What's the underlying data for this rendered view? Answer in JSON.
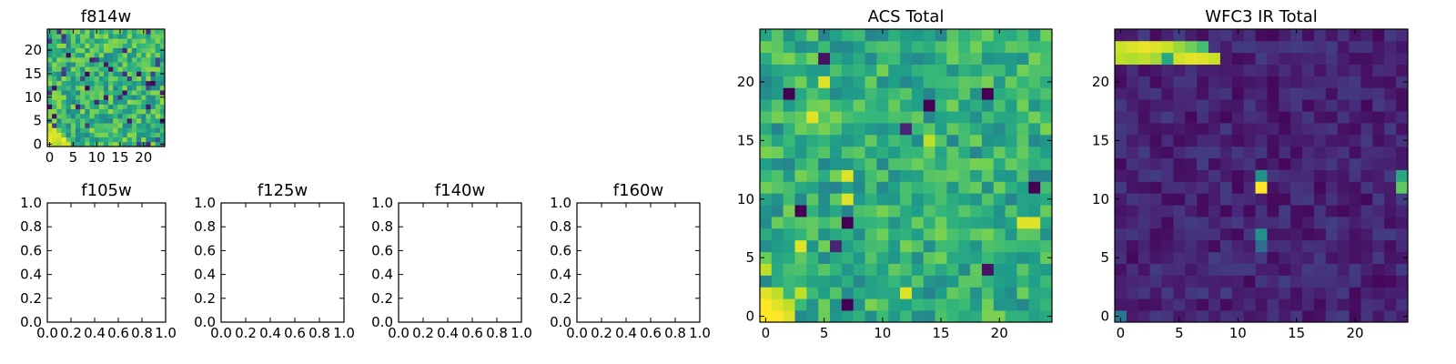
{
  "figure": {
    "background": "#ffffff"
  },
  "chart_data": [
    {
      "id": "f814w",
      "type": "heatmap",
      "title": "f814w",
      "colormap": "viridis",
      "grid_size": 25,
      "xlim": [
        -0.5,
        24.5
      ],
      "ylim": [
        -0.5,
        24.5
      ],
      "xticks": [
        0,
        5,
        10,
        15,
        20
      ],
      "xtick_labels": [
        "0",
        "5",
        "10",
        "15",
        "20"
      ],
      "yticks": [
        0,
        5,
        10,
        15,
        20
      ],
      "ytick_labels": [
        "0",
        "5",
        "10",
        "15",
        "20"
      ],
      "grid": false,
      "note_values": "noise-like field of normalized intensities, brighter corner at bottom-left"
    },
    {
      "id": "f105w",
      "type": "empty",
      "title": "f105w",
      "xlim": [
        0,
        1
      ],
      "ylim": [
        0,
        1
      ],
      "xtick_labels": [
        "0.0",
        "0.2",
        "0.4",
        "0.6",
        "0.8",
        "1.0"
      ],
      "ytick_labels": [
        "0.0",
        "0.2",
        "0.4",
        "0.6",
        "0.8",
        "1.0"
      ]
    },
    {
      "id": "f125w",
      "type": "empty",
      "title": "f125w",
      "xlim": [
        0,
        1
      ],
      "ylim": [
        0,
        1
      ],
      "xtick_labels": [
        "0.0",
        "0.2",
        "0.4",
        "0.6",
        "0.8",
        "1.0"
      ],
      "ytick_labels": [
        "0.0",
        "0.2",
        "0.4",
        "0.6",
        "0.8",
        "1.0"
      ]
    },
    {
      "id": "f140w",
      "type": "empty",
      "title": "f140w",
      "xlim": [
        0,
        1
      ],
      "ylim": [
        0,
        1
      ],
      "xtick_labels": [
        "0.0",
        "0.2",
        "0.4",
        "0.6",
        "0.8",
        "1.0"
      ],
      "ytick_labels": [
        "0.0",
        "0.2",
        "0.4",
        "0.6",
        "0.8",
        "1.0"
      ]
    },
    {
      "id": "f160w",
      "type": "empty",
      "title": "f160w",
      "xlim": [
        0,
        1
      ],
      "ylim": [
        0,
        1
      ],
      "xtick_labels": [
        "0.0",
        "0.2",
        "0.4",
        "0.6",
        "0.8",
        "1.0"
      ],
      "ytick_labels": [
        "0.0",
        "0.2",
        "0.4",
        "0.6",
        "0.8",
        "1.0"
      ]
    },
    {
      "id": "acs_total",
      "type": "heatmap",
      "title": "ACS Total",
      "colormap": "viridis",
      "grid_size": 25,
      "xlim": [
        -0.5,
        24.5
      ],
      "ylim": [
        -0.5,
        24.5
      ],
      "xticks": [
        0,
        5,
        10,
        15,
        20
      ],
      "xtick_labels": [
        "0",
        "5",
        "10",
        "15",
        "20"
      ],
      "yticks": [
        0,
        5,
        10,
        15,
        20
      ],
      "ytick_labels": [
        "0",
        "5",
        "10",
        "15",
        "20"
      ],
      "grid": false,
      "highlights": [
        {
          "x": 0,
          "y": 0,
          "value": 1.0
        },
        {
          "x": 1,
          "y": 0,
          "value": 1.0
        },
        {
          "x": 0,
          "y": 1,
          "value": 1.0
        },
        {
          "x": 1,
          "y": 1,
          "value": 0.95
        },
        {
          "x": 2,
          "y": 0,
          "value": 0.95
        },
        {
          "x": 0,
          "y": 2,
          "value": 0.95
        },
        {
          "x": 1,
          "y": 2,
          "value": 0.9
        },
        {
          "x": 2,
          "y": 1,
          "value": 0.9
        },
        {
          "x": 3,
          "y": 2,
          "value": 0.9
        },
        {
          "x": 0,
          "y": 4,
          "value": 0.9
        },
        {
          "x": 3,
          "y": 6,
          "value": 0.95
        },
        {
          "x": 12,
          "y": 2,
          "value": 0.95
        },
        {
          "x": 7,
          "y": 10,
          "value": 0.95
        },
        {
          "x": 4,
          "y": 17,
          "value": 0.95
        },
        {
          "x": 7,
          "y": 12,
          "value": 0.95
        },
        {
          "x": 22,
          "y": 8,
          "value": 0.95
        },
        {
          "x": 23,
          "y": 8,
          "value": 0.95
        },
        {
          "x": 5,
          "y": 20,
          "value": 0.95
        },
        {
          "x": 14,
          "y": 15,
          "value": 0.9
        },
        {
          "x": 7,
          "y": 1,
          "value": 0.0
        },
        {
          "x": 3,
          "y": 9,
          "value": 0.0
        },
        {
          "x": 7,
          "y": 8,
          "value": 0.0
        },
        {
          "x": 2,
          "y": 19,
          "value": 0.0
        },
        {
          "x": 14,
          "y": 18,
          "value": 0.0
        },
        {
          "x": 19,
          "y": 19,
          "value": 0.0
        },
        {
          "x": 23,
          "y": 11,
          "value": 0.0
        },
        {
          "x": 5,
          "y": 22,
          "value": 0.05
        },
        {
          "x": 19,
          "y": 4,
          "value": 0.05
        },
        {
          "x": 6,
          "y": 6,
          "value": 0.1
        },
        {
          "x": 12,
          "y": 16,
          "value": 0.1
        }
      ]
    },
    {
      "id": "wfc3_ir_total",
      "type": "heatmap",
      "title": "WFC3 IR Total",
      "colormap": "viridis",
      "grid_size": 25,
      "xlim": [
        -0.5,
        24.5
      ],
      "ylim": [
        -0.5,
        24.5
      ],
      "xticks": [
        0,
        5,
        10,
        15,
        20
      ],
      "xtick_labels": [
        "0",
        "5",
        "10",
        "15",
        "20"
      ],
      "yticks": [
        0,
        5,
        10,
        15,
        20
      ],
      "ytick_labels": [
        "0",
        "5",
        "10",
        "15",
        "20"
      ],
      "grid": false,
      "highlights": [
        {
          "x": 0,
          "y": 23,
          "value": 0.92
        },
        {
          "x": 1,
          "y": 23,
          "value": 0.95
        },
        {
          "x": 2,
          "y": 23,
          "value": 0.97
        },
        {
          "x": 3,
          "y": 23,
          "value": 0.95
        },
        {
          "x": 4,
          "y": 23,
          "value": 0.92
        },
        {
          "x": 5,
          "y": 23,
          "value": 0.85
        },
        {
          "x": 6,
          "y": 23,
          "value": 0.78
        },
        {
          "x": 7,
          "y": 23,
          "value": 0.7
        },
        {
          "x": 0,
          "y": 22,
          "value": 0.9
        },
        {
          "x": 1,
          "y": 22,
          "value": 0.88
        },
        {
          "x": 2,
          "y": 22,
          "value": 0.9
        },
        {
          "x": 3,
          "y": 22,
          "value": 0.86
        },
        {
          "x": 4,
          "y": 22,
          "value": 0.6
        },
        {
          "x": 5,
          "y": 22,
          "value": 0.93
        },
        {
          "x": 6,
          "y": 22,
          "value": 0.96
        },
        {
          "x": 7,
          "y": 22,
          "value": 0.95
        },
        {
          "x": 8,
          "y": 22,
          "value": 0.92
        },
        {
          "x": 0,
          "y": 0,
          "value": 0.4
        },
        {
          "x": 12,
          "y": 12,
          "value": 0.5
        },
        {
          "x": 12,
          "y": 11,
          "value": 1.0
        },
        {
          "x": 12,
          "y": 7,
          "value": 0.5
        },
        {
          "x": 12,
          "y": 6,
          "value": 0.35
        },
        {
          "x": 24,
          "y": 12,
          "value": 0.6
        },
        {
          "x": 24,
          "y": 11,
          "value": 0.75
        }
      ]
    }
  ]
}
